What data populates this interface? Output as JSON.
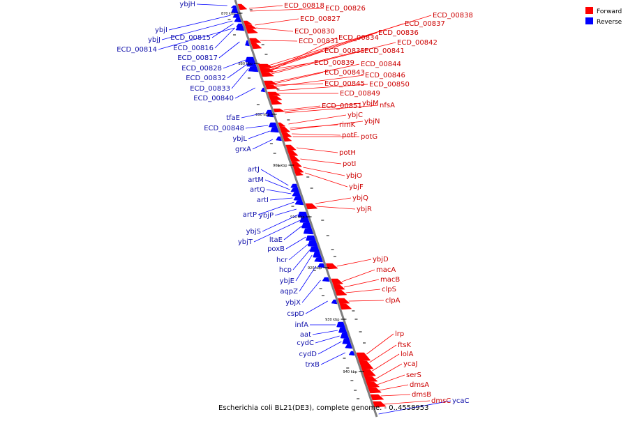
{
  "caption": "Escherichia coli BL21(DE3), complete genome. - 0..4558953",
  "colors": {
    "forward": "#ff0000",
    "reverse": "#0000ff",
    "forward_label": "#cc0000",
    "reverse_label": "#1010aa",
    "backbone": "#808080"
  },
  "legend": [
    {
      "name": "Forward",
      "color": "#ff0000"
    },
    {
      "name": "Reverse",
      "color": "#0000ff"
    }
  ],
  "ticks": [
    "870 kbp",
    "880 kbp",
    "890 kbp",
    "900 kbp",
    "910 kbp",
    "920 kbp",
    "930 kbp",
    "940 kbp"
  ],
  "forward_genes": [
    "ECD_00818",
    "ECD_00826",
    "ECD_00827",
    "ECD_00838",
    "ECD_00837",
    "ECD_00830",
    "ECD_00836",
    "ECD_00834",
    "ECD_00831",
    "ECD_00842",
    "ECD_00835",
    "ECD_00841",
    "ECD_00839",
    "ECD_00844",
    "ECD_00843",
    "ECD_00846",
    "ECD_00845",
    "ECD_00850",
    "ECD_00849",
    "ECD_00851",
    "ybjM",
    "nfsA",
    "ybjC",
    "ybjN",
    "rimK",
    "potF",
    "potG",
    "potH",
    "potI",
    "ybjO",
    "ybjF",
    "ybjQ",
    "ybjR",
    "ybjD",
    "macA",
    "macB",
    "clpS",
    "clpA",
    "lrp",
    "ftsK",
    "lolA",
    "ycaJ",
    "serS",
    "dmsA",
    "dmsB",
    "dmsC"
  ],
  "reverse_genes": [
    "ybjH",
    "ybjI",
    "ybjJ",
    "ECD_00815",
    "ECD_00814",
    "ECD_00816",
    "ECD_00817",
    "ECD_00828",
    "ECD_00832",
    "ECD_00833",
    "ECD_00840",
    "tfaE",
    "ECD_00848",
    "ybjL",
    "grxA",
    "artJ",
    "artM",
    "artQ",
    "artI",
    "artP",
    "ybjP",
    "ybjS",
    "ybjT",
    "ltaE",
    "poxB",
    "hcr",
    "hcp",
    "ybjE",
    "aqpZ",
    "ybjX",
    "cspD",
    "infA",
    "aat",
    "cydC",
    "cydD",
    "trxB",
    "ycaC"
  ]
}
